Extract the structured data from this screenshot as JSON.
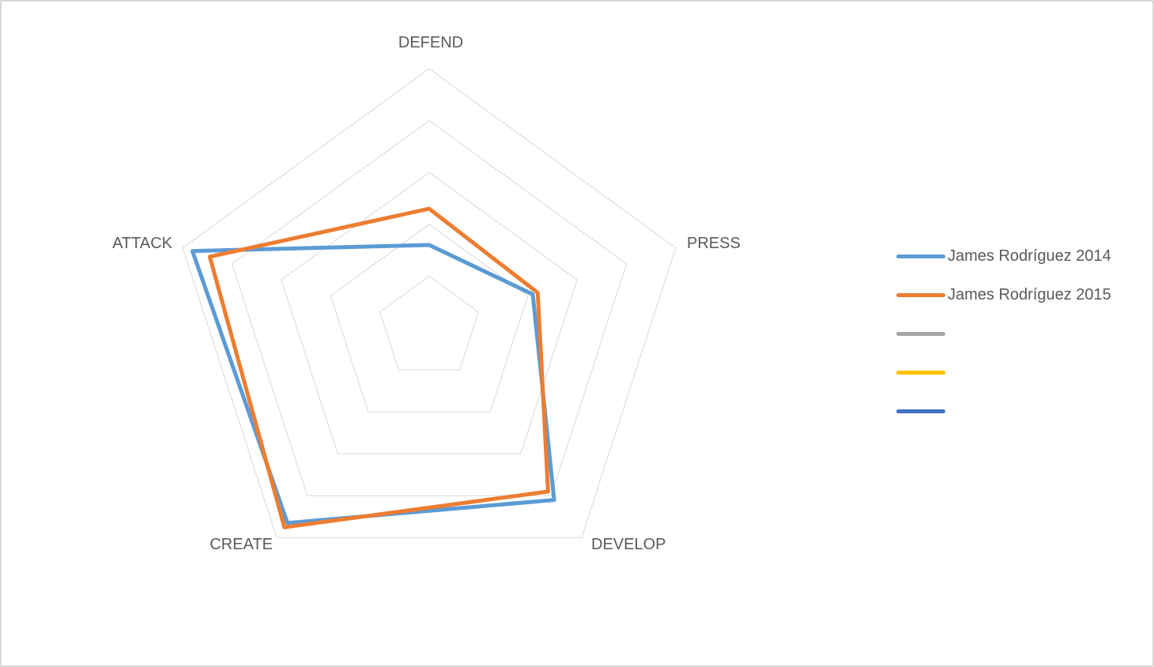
{
  "frame": {
    "background": "#ffffff",
    "border_color": "#D8D8D8"
  },
  "chart_data": {
    "type": "radar",
    "title": "",
    "categories": [
      "DEFEND",
      "PRESS",
      "DEVELOP",
      "CREATE",
      "ATTACK"
    ],
    "series": [
      {
        "name": "James Rodríguez 2014",
        "color": "#5B9BD5",
        "values": [
          32,
          42,
          82,
          93,
          96
        ]
      },
      {
        "name": "James Rodríguez 2015",
        "color": "#ED7D31",
        "values": [
          46,
          44,
          78,
          95,
          89
        ]
      },
      {
        "name": "",
        "color": "#A5A5A5",
        "values": []
      },
      {
        "name": "",
        "color": "#FFC000",
        "values": []
      },
      {
        "name": "",
        "color": "#4472C4",
        "values": []
      }
    ],
    "rmax": 100,
    "grid_rings": 5,
    "grid_interval": 20,
    "grid_on": true,
    "radial_spokes": false,
    "tick_labels_shown": false,
    "grid_color": "#D9D9D9",
    "label_color": "#595959",
    "legend_position": "right"
  }
}
